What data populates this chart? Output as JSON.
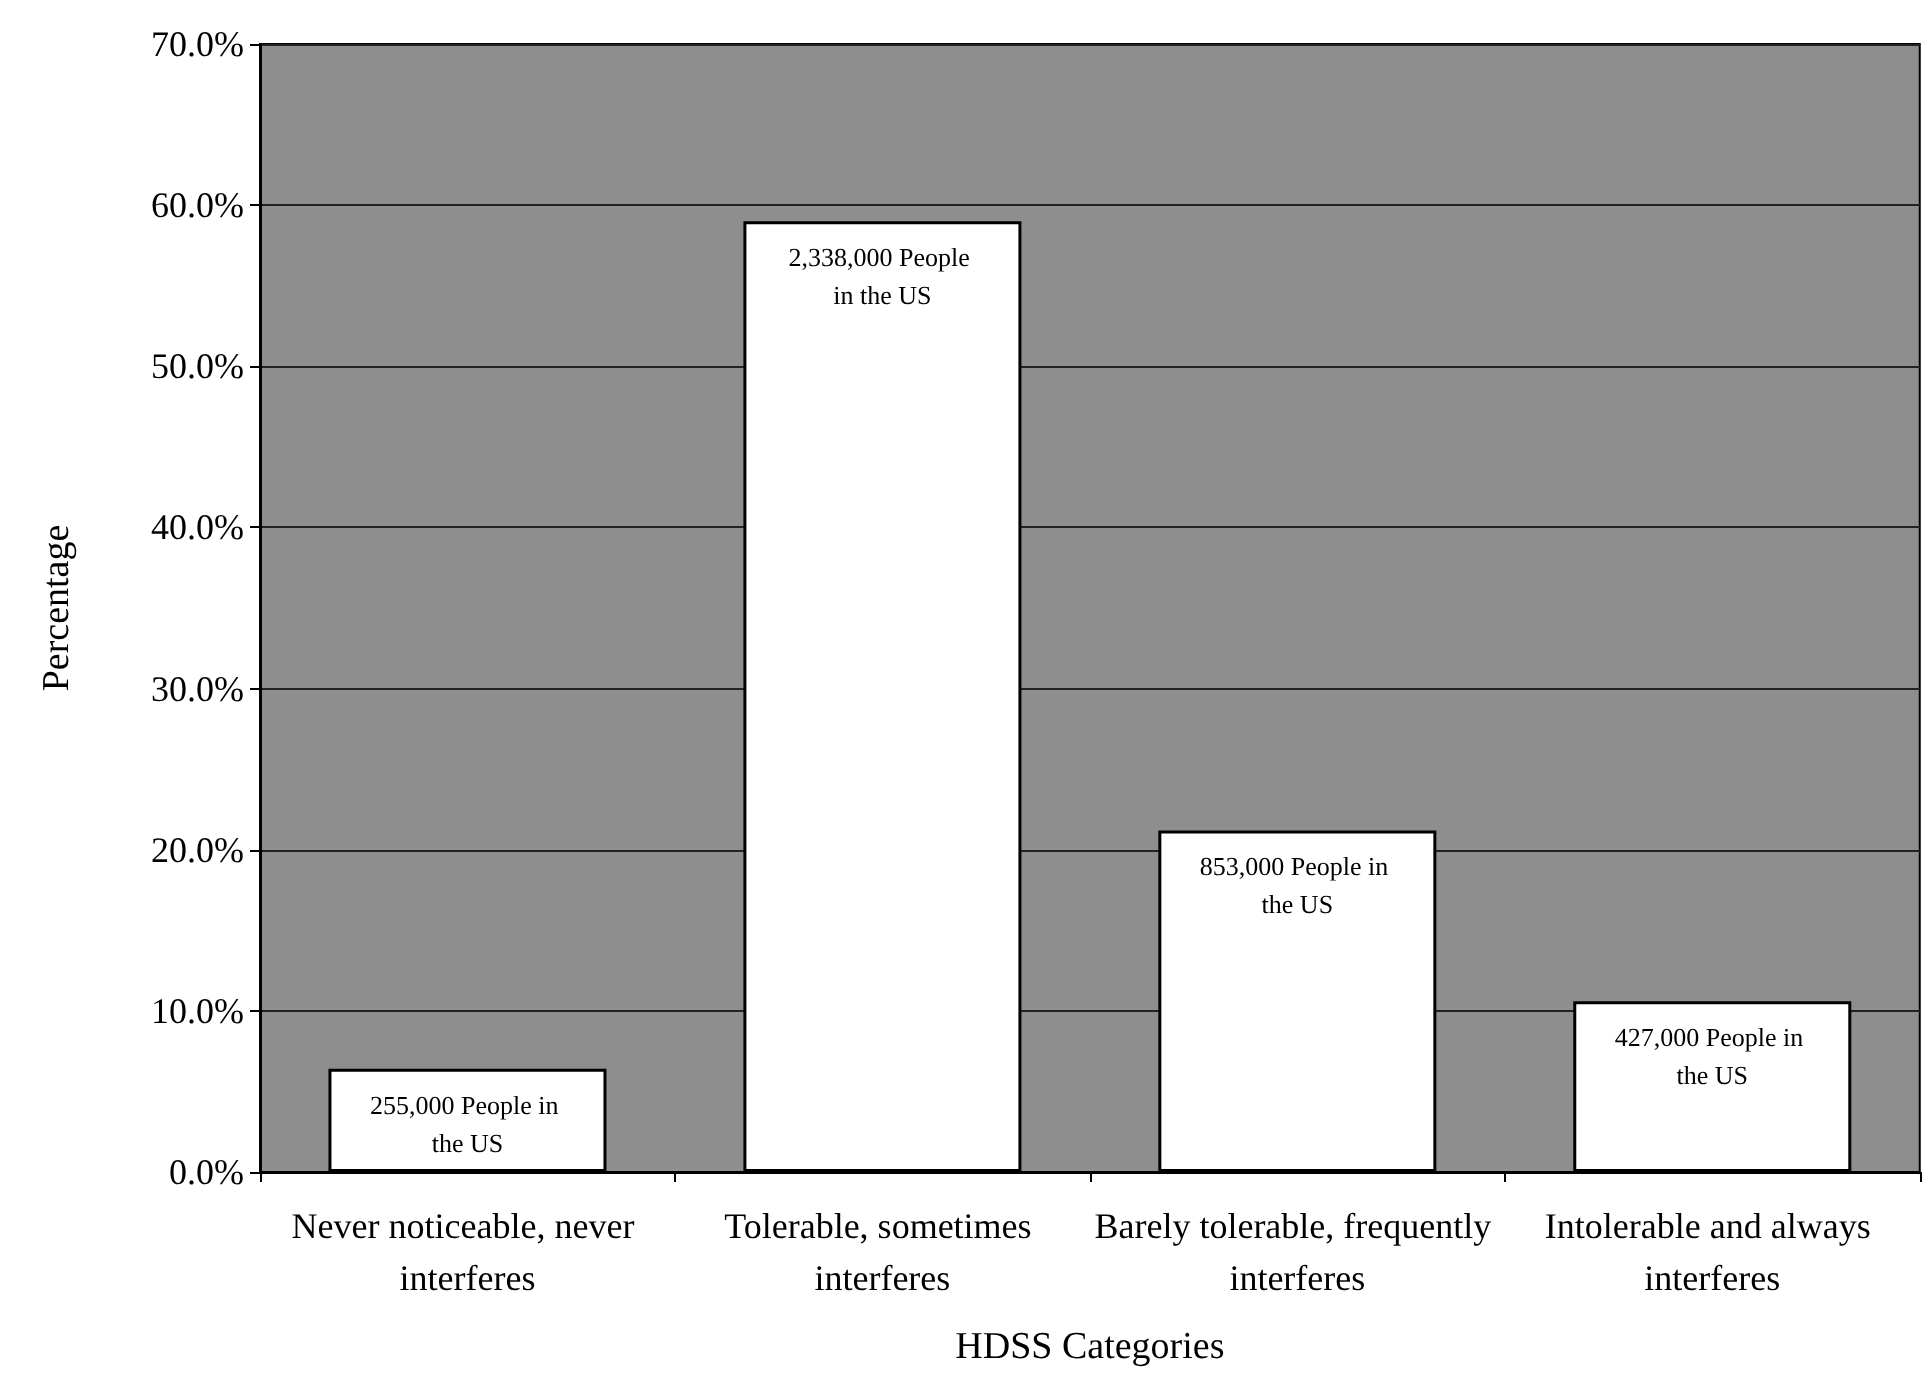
{
  "chart_data": {
    "type": "bar",
    "xlabel": "HDSS Categories",
    "ylabel": "Percentage",
    "categories": [
      "Never noticeable, never interferes",
      "Tolerable, sometimes interferes",
      "Barely tolerable, frequently interferes",
      "Intolerable and always interferes"
    ],
    "values": [
      6.4,
      59.0,
      21.2,
      10.6
    ],
    "color": "#ffffff",
    "ylim": [
      0,
      70
    ],
    "yticks": [
      {
        "value": 0,
        "label": "0.0%"
      },
      {
        "value": 10,
        "label": "10.0%"
      },
      {
        "value": 20,
        "label": "20.0%"
      },
      {
        "value": 30,
        "label": "30.0%"
      },
      {
        "value": 40,
        "label": "40.0%"
      },
      {
        "value": 50,
        "label": "50.0%"
      },
      {
        "value": 60,
        "label": "60.0%"
      },
      {
        "value": 70,
        "label": "70.0%"
      }
    ],
    "grid": "y",
    "annotations": [
      {
        "text": "255,000 People in the US",
        "x": "Never noticeable, never interferes",
        "y": 6.4
      },
      {
        "text": "2,338,000 People in the US",
        "x": "Tolerable, sometimes interferes",
        "y": 59.0
      },
      {
        "text": "853,000 People in the US",
        "x": "Barely tolerable, frequently interferes",
        "y": 21.2
      },
      {
        "text": "427,000 People in the US",
        "x": "Intolerable and always interferes",
        "y": 10.6
      }
    ]
  }
}
